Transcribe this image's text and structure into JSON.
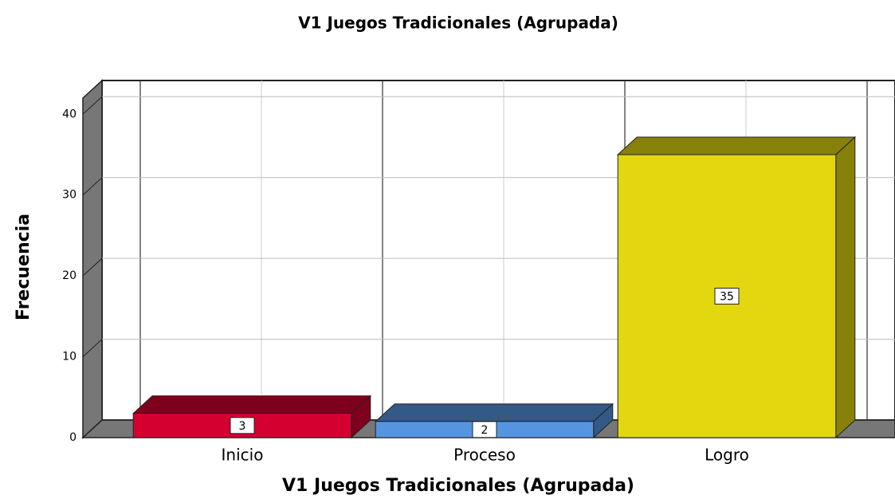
{
  "chart_data": {
    "type": "bar3d",
    "title": "V1 Juegos Tradicionales (Agrupada)",
    "x_label": "V1 Juegos Tradicionales (Agrupada)",
    "y_label": "Frecuencia",
    "categories": [
      "Inicio",
      "Proceso",
      "Logro"
    ],
    "values": [
      3,
      2,
      35
    ],
    "colors": [
      "#d4002f",
      "#5595e0",
      "#e3d70f"
    ],
    "ylim": [
      0,
      42
    ],
    "yticks": [
      0,
      10,
      20,
      30,
      40
    ],
    "grid": true
  }
}
